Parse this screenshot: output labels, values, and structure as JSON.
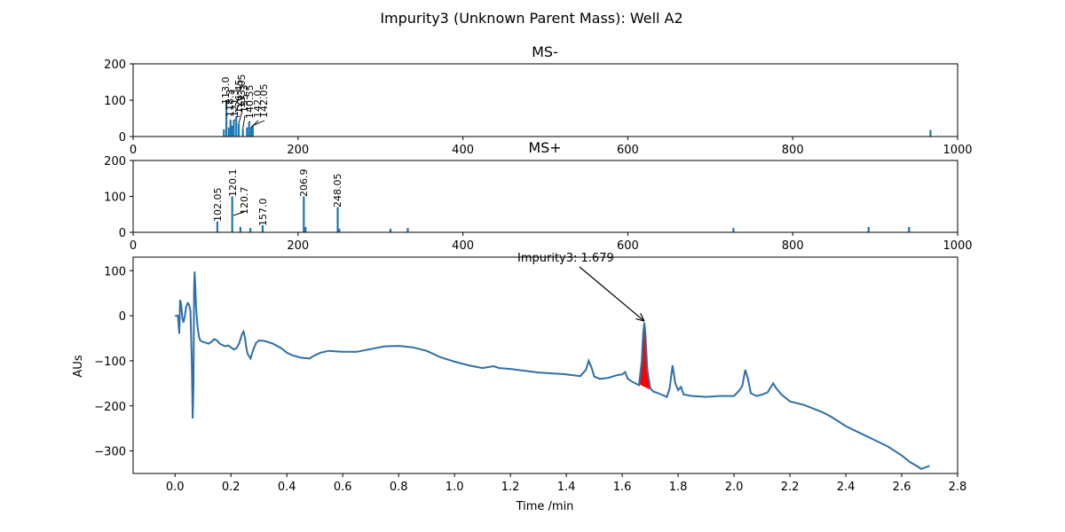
{
  "figure": {
    "suptitle": "Impurity3 (Unknown Parent Mass): Well A2",
    "line_color": "#2f6fa8",
    "peak_fill_color": "#ff0000",
    "bar_color": "#1f77b4"
  },
  "chart_data": [
    {
      "type": "bar",
      "title": "MS-",
      "xlabel": "",
      "ylabel": "",
      "xlim": [
        0,
        1000
      ],
      "ylim": [
        0,
        200
      ],
      "xticks": [
        0,
        200,
        400,
        600,
        800,
        1000
      ],
      "yticks": [
        0,
        100,
        200
      ],
      "grid": false,
      "peaks": [
        {
          "x": 110,
          "y": 20
        },
        {
          "x": 113.0,
          "y": 100,
          "label": "113.0"
        },
        {
          "x": 116,
          "y": 25
        },
        {
          "x": 118,
          "y": 45
        },
        {
          "x": 120,
          "y": 30
        },
        {
          "x": 122,
          "y": 45
        },
        {
          "x": 125,
          "y": 55
        },
        {
          "x": 128,
          "y": 35
        },
        {
          "x": 133,
          "y": 20
        },
        {
          "x": 138,
          "y": 25
        },
        {
          "x": 140.55,
          "y": 40
        },
        {
          "x": 143,
          "y": 25
        },
        {
          "x": 145,
          "y": 30
        },
        {
          "x": 967,
          "y": 18
        }
      ],
      "labels": [
        {
          "text": "113.0"
        },
        {
          "text": "118.3"
        },
        {
          "text": "121.3"
        },
        {
          "text": "126.45"
        },
        {
          "text": "133.05"
        },
        {
          "text": "135.3"
        },
        {
          "text": "140.55"
        },
        {
          "text": "142.0"
        },
        {
          "text": "142.05"
        }
      ]
    },
    {
      "type": "bar",
      "title": "MS+",
      "xlabel": "",
      "ylabel": "",
      "xlim": [
        0,
        1000
      ],
      "ylim": [
        0,
        200
      ],
      "xticks": [
        0,
        200,
        400,
        600,
        800,
        1000
      ],
      "yticks": [
        0,
        100,
        200
      ],
      "grid": false,
      "peaks": [
        {
          "x": 102.05,
          "y": 30,
          "label": "102.05"
        },
        {
          "x": 120.1,
          "y": 100,
          "label": "120.1"
        },
        {
          "x": 130,
          "y": 15
        },
        {
          "x": 142,
          "y": 12
        },
        {
          "x": 157.0,
          "y": 20,
          "label": "157.0"
        },
        {
          "x": 206.9,
          "y": 100,
          "label": "206.9"
        },
        {
          "x": 209,
          "y": 15
        },
        {
          "x": 248.05,
          "y": 70,
          "label": "248.05"
        },
        {
          "x": 250,
          "y": 10
        },
        {
          "x": 312,
          "y": 10
        },
        {
          "x": 333,
          "y": 12
        },
        {
          "x": 728,
          "y": 12
        },
        {
          "x": 892,
          "y": 15
        },
        {
          "x": 941,
          "y": 15
        }
      ],
      "labels": [
        {
          "text": "102.05"
        },
        {
          "text": "120.1"
        },
        {
          "text": "120.7"
        },
        {
          "text": "157.0"
        },
        {
          "text": "206.9"
        },
        {
          "text": "248.05"
        }
      ]
    },
    {
      "type": "line",
      "title": "",
      "xlabel": "Time /min",
      "ylabel": "AUs",
      "xlim": [
        -0.15,
        2.8
      ],
      "ylim": [
        -350,
        130
      ],
      "xticks": [
        0.0,
        0.2,
        0.4,
        0.6,
        0.8,
        1.0,
        1.2,
        1.4,
        1.6,
        1.8,
        2.0,
        2.2,
        2.4,
        2.6,
        2.8
      ],
      "xtick_labels": [
        "0.0",
        "0.2",
        "0.4",
        "0.6",
        "0.8",
        "1.0",
        "1.2",
        "1.4",
        "1.6",
        "1.8",
        "2.0",
        "2.2",
        "2.4",
        "2.6",
        "2.8"
      ],
      "yticks": [
        -300,
        -200,
        -100,
        0,
        100
      ],
      "ytick_labels": [
        "−300",
        "−200",
        "−100",
        "0",
        "100"
      ],
      "grid": false,
      "annotation": {
        "text": "Impurity3: 1.679",
        "x": 1.679,
        "y": -12
      },
      "peak_fill": {
        "x_start": 1.645,
        "x_end": 1.715,
        "baseline_start": -148,
        "baseline_end": -168
      },
      "series": [
        {
          "x": [
            0.0,
            0.01,
            0.015,
            0.018,
            0.022,
            0.026,
            0.03,
            0.035,
            0.04,
            0.045,
            0.05,
            0.055,
            0.06,
            0.063,
            0.066,
            0.068,
            0.07,
            0.072,
            0.075,
            0.08,
            0.085,
            0.09,
            0.1,
            0.11,
            0.12,
            0.13,
            0.14,
            0.15,
            0.16,
            0.17,
            0.18,
            0.19,
            0.2,
            0.21,
            0.22,
            0.23,
            0.24,
            0.245,
            0.25,
            0.255,
            0.26,
            0.27,
            0.28,
            0.29,
            0.3,
            0.32,
            0.35,
            0.38,
            0.4,
            0.42,
            0.45,
            0.48,
            0.5,
            0.52,
            0.55,
            0.6,
            0.65,
            0.7,
            0.75,
            0.8,
            0.85,
            0.9,
            0.95,
            1.0,
            1.05,
            1.1,
            1.14,
            1.16,
            1.2,
            1.25,
            1.3,
            1.35,
            1.4,
            1.45,
            1.47,
            1.48,
            1.49,
            1.5,
            1.52,
            1.55,
            1.58,
            1.6,
            1.61,
            1.62,
            1.64,
            1.66,
            1.67,
            1.675,
            1.679,
            1.683,
            1.69,
            1.7,
            1.71,
            1.72,
            1.74,
            1.76,
            1.77,
            1.78,
            1.79,
            1.8,
            1.81,
            1.82,
            1.85,
            1.9,
            1.95,
            2.0,
            2.02,
            2.03,
            2.04,
            2.05,
            2.06,
            2.08,
            2.1,
            2.12,
            2.14,
            2.15,
            2.17,
            2.2,
            2.25,
            2.3,
            2.32,
            2.35,
            2.4,
            2.45,
            2.5,
            2.55,
            2.6,
            2.63,
            2.65,
            2.67,
            2.69,
            2.7
          ],
          "y": [
            0,
            0,
            -40,
            35,
            25,
            -5,
            -15,
            0,
            20,
            28,
            25,
            10,
            -100,
            -228,
            -160,
            60,
            98,
            70,
            20,
            -20,
            -45,
            -55,
            -58,
            -60,
            -62,
            -58,
            -52,
            -55,
            -62,
            -65,
            -68,
            -66,
            -70,
            -75,
            -72,
            -60,
            -40,
            -35,
            -48,
            -70,
            -85,
            -95,
            -75,
            -60,
            -55,
            -56,
            -62,
            -72,
            -82,
            -88,
            -93,
            -95,
            -88,
            -82,
            -78,
            -80,
            -80,
            -74,
            -68,
            -67,
            -70,
            -78,
            -92,
            -102,
            -110,
            -116,
            -112,
            -116,
            -118,
            -122,
            -126,
            -128,
            -130,
            -134,
            -120,
            -100,
            -115,
            -135,
            -140,
            -138,
            -132,
            -130,
            -125,
            -140,
            -148,
            -154,
            -100,
            -40,
            -15,
            -40,
            -120,
            -160,
            -168,
            -170,
            -175,
            -180,
            -160,
            -110,
            -150,
            -165,
            -158,
            -175,
            -178,
            -180,
            -178,
            -178,
            -165,
            -155,
            -120,
            -140,
            -172,
            -178,
            -175,
            -170,
            -150,
            -160,
            -175,
            -190,
            -198,
            -210,
            -215,
            -225,
            -245,
            -260,
            -275,
            -290,
            -310,
            -325,
            -332,
            -340,
            -335,
            -333
          ]
        }
      ]
    }
  ]
}
